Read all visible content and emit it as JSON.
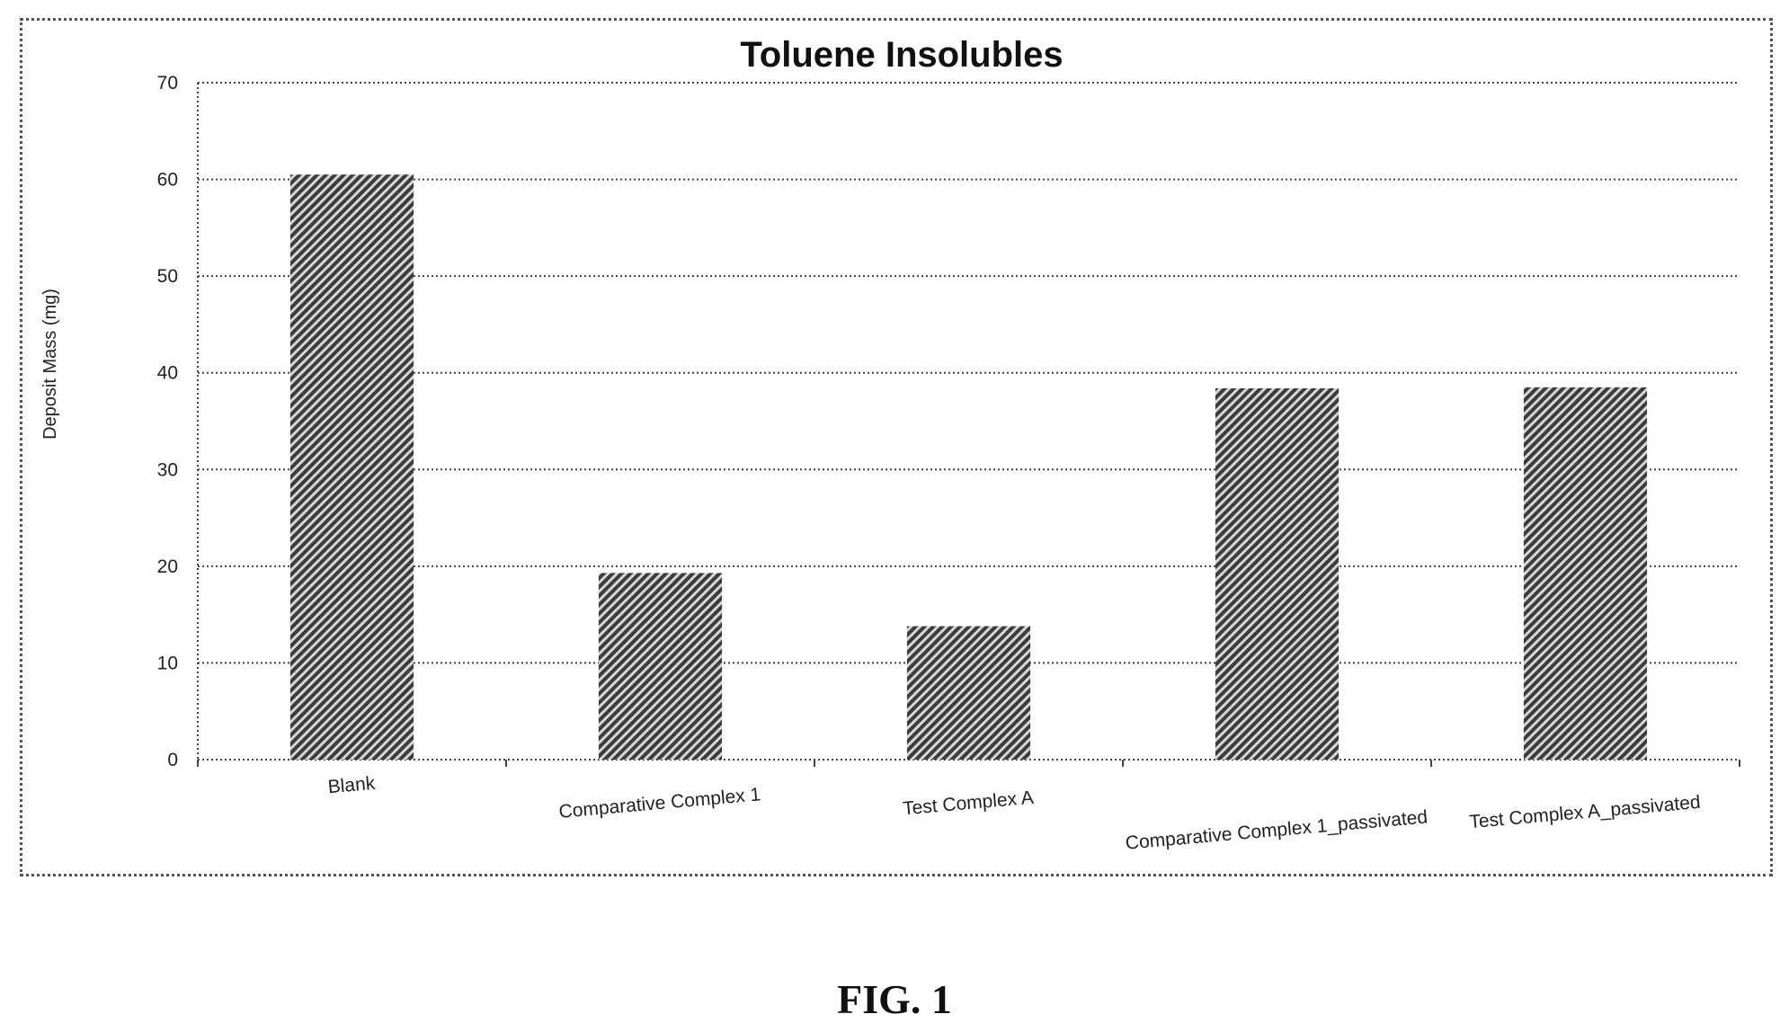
{
  "figure": {
    "caption": "FIG. 1"
  },
  "chart_data": {
    "type": "bar",
    "title": "Toluene Insolubles",
    "xlabel": "",
    "ylabel": "Deposit Mass (mg)",
    "categories": [
      "Blank",
      "Comparative Complex 1",
      "Test Complex A",
      "Comparative Complex 1_passivated",
      "Test Complex A_passivated"
    ],
    "values": [
      60.5,
      19.3,
      13.8,
      38.4,
      38.5
    ],
    "ylim": [
      0,
      70
    ],
    "yticks": [
      0,
      10,
      20,
      30,
      40,
      50,
      60,
      70
    ],
    "grid": true,
    "legend": "none",
    "bar_pattern": "diagonal hatch, dark gray",
    "colors": {
      "bar_dark": "#3c3c3c",
      "bar_light": "#d6d6d6",
      "grid": "#444444",
      "text": "#222222"
    }
  }
}
